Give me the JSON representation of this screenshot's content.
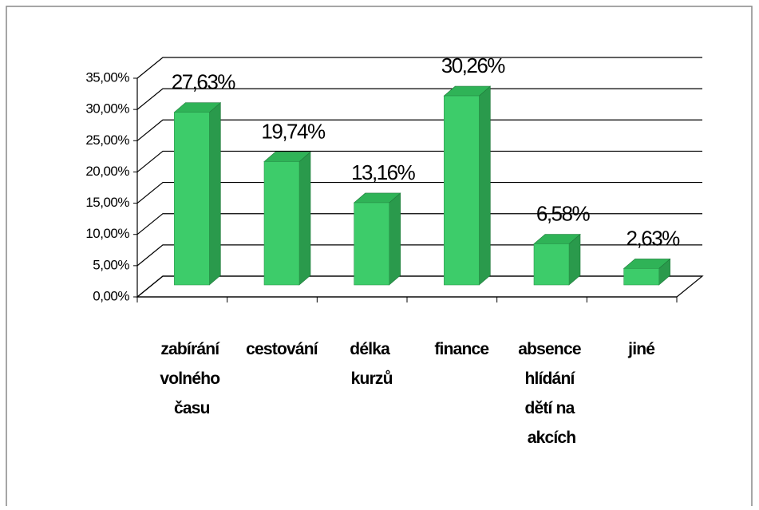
{
  "chart_data": {
    "type": "bar3d",
    "categories": [
      "zabírání volného času",
      "cestování",
      "délka kurzů",
      "finance",
      "absence hlídání dětí na akcích",
      "jiné"
    ],
    "values": [
      27.63,
      19.74,
      13.16,
      30.26,
      6.58,
      2.63
    ],
    "value_labels": [
      "27,63%",
      "19,74%",
      "13,16%",
      "30,26%",
      "6,58%",
      "2,63%"
    ],
    "color": "#3dcc6a",
    "ylim": [
      0,
      35
    ],
    "yticks": [
      {
        "value": 0,
        "label": "0,00%"
      },
      {
        "value": 5,
        "label": "5,00%"
      },
      {
        "value": 10,
        "label": "10,00%"
      },
      {
        "value": 15,
        "label": "15,00%"
      },
      {
        "value": 20,
        "label": "20,00%"
      },
      {
        "value": 25,
        "label": "25,00%"
      },
      {
        "value": 30,
        "label": "30,00%"
      },
      {
        "value": 35,
        "label": "35,00%"
      }
    ],
    "grid": true
  }
}
